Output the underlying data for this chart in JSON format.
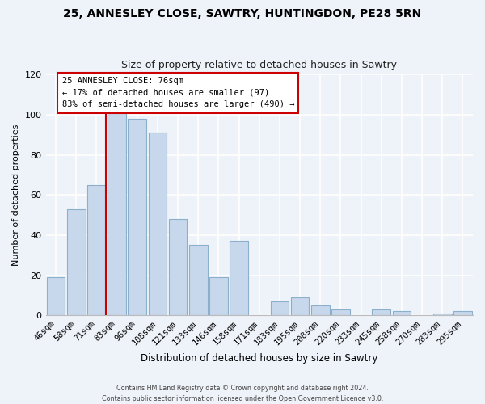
{
  "title": "25, ANNESLEY CLOSE, SAWTRY, HUNTINGDON, PE28 5RN",
  "subtitle": "Size of property relative to detached houses in Sawtry",
  "xlabel": "Distribution of detached houses by size in Sawtry",
  "ylabel": "Number of detached properties",
  "bar_labels": [
    "46sqm",
    "58sqm",
    "71sqm",
    "83sqm",
    "96sqm",
    "108sqm",
    "121sqm",
    "133sqm",
    "146sqm",
    "158sqm",
    "171sqm",
    "183sqm",
    "195sqm",
    "208sqm",
    "220sqm",
    "233sqm",
    "245sqm",
    "258sqm",
    "270sqm",
    "283sqm",
    "295sqm"
  ],
  "bar_values": [
    19,
    53,
    65,
    101,
    98,
    91,
    48,
    35,
    19,
    37,
    0,
    7,
    9,
    5,
    3,
    0,
    3,
    2,
    0,
    1,
    2
  ],
  "bar_color": "#c8d8ec",
  "bar_edge_color": "#8ab0cc",
  "highlight_color": "#cc0000",
  "annotation_title": "25 ANNESLEY CLOSE: 76sqm",
  "annotation_line1": "← 17% of detached houses are smaller (97)",
  "annotation_line2": "83% of semi-detached houses are larger (490) →",
  "ylim": [
    0,
    120
  ],
  "yticks": [
    0,
    20,
    40,
    60,
    80,
    100,
    120
  ],
  "bg_color": "#eef2f9",
  "grid_color": "#ffffff",
  "footer1": "Contains HM Land Registry data © Crown copyright and database right 2024.",
  "footer2": "Contains public sector information licensed under the Open Government Licence v3.0."
}
